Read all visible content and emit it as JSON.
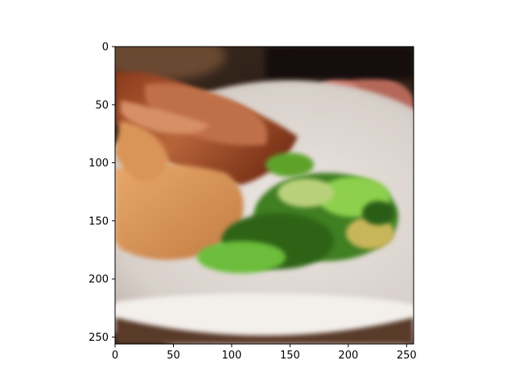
{
  "chart_data": {
    "type": "image",
    "xlim": [
      0,
      256
    ],
    "ylim": [
      256,
      0
    ],
    "xticks": [
      0,
      50,
      100,
      150,
      200,
      250
    ],
    "yticks": [
      0,
      50,
      100,
      150,
      200,
      250
    ],
    "xtick_labels": [
      "0",
      "50",
      "100",
      "150",
      "200",
      "250"
    ],
    "ytick_labels": [
      "0",
      "50",
      "100",
      "150",
      "200",
      "250"
    ],
    "grid": false,
    "y_axis_inverted": true,
    "image_subject": "food-plate-photo"
  },
  "colors": {
    "plate": "#d9d3cc",
    "meat": "#a55a2c",
    "bread": "#d9985e",
    "greens": "#4f9a2a",
    "dark": "#1f1712"
  }
}
